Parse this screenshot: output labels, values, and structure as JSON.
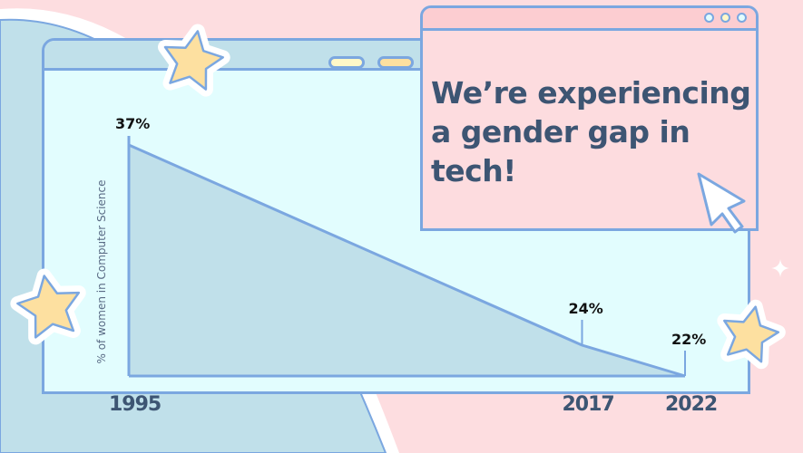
{
  "headline": "We’re experiencing a gender gap in tech!",
  "colors": {
    "background": "#fddde0",
    "window_body": "#e2fdfe",
    "window_bar": "#c0e0ea",
    "outline": "#7ba7e0",
    "area_fill": "#c0e0ea",
    "star": "#fde0a0",
    "text": "#3d5573"
  },
  "icons": [
    "star-icon",
    "sparkle-icon",
    "cursor-arrow-icon",
    "window-dots"
  ],
  "chart_data": {
    "type": "area",
    "title": "",
    "xlabel": "",
    "ylabel": "% of women in Computer Science",
    "x": [
      1995,
      2017,
      2022
    ],
    "x_tick_labels": [
      "1995",
      "2017",
      "2022"
    ],
    "values": [
      37,
      24,
      22
    ],
    "data_labels": [
      "37%",
      "24%",
      "22%"
    ],
    "ylim": [
      22,
      37
    ],
    "grid": false,
    "legend": "none"
  }
}
